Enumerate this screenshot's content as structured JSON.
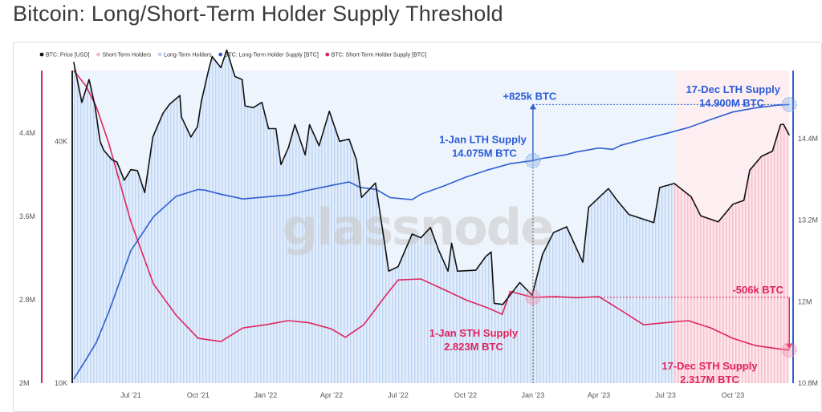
{
  "title": "Bitcoin: Long/Short-Term Holder Supply Threshold",
  "watermark": "glassnode",
  "colors": {
    "price": "#111111",
    "sth_fill": "#f7b9c7",
    "lth_fill": "#b9d3f3",
    "lth_line": "#2f5fd0",
    "sth_line": "#e0245e",
    "left_axis": "#e0245e",
    "right_axis": "#2f5fd0"
  },
  "legend": [
    {
      "label": "BTC: Price [USD]",
      "color": "#111111"
    },
    {
      "label": "Short-Term Holders",
      "color": "#f7b9c7"
    },
    {
      "label": "Long-Term Holders",
      "color": "#b9d3f3"
    },
    {
      "label": "BTC: Long-Term Holder Supply [BTC]",
      "color": "#2f5fd0"
    },
    {
      "label": "BTC: Short-Term Holder Supply [BTC]",
      "color": "#e0245e"
    }
  ],
  "annotations": {
    "lth_change": "+825k BTC",
    "lth_start_line1": "1-Jan LTH Supply",
    "lth_start_line2": "14.075M BTC",
    "lth_end_line1": "17-Dec LTH Supply",
    "lth_end_line2": "14.900M BTC",
    "sth_change": "-506k BTC",
    "sth_start_line1": "1-Jan STH Supply",
    "sth_start_line2": "2.823M BTC",
    "sth_end_line1": "17-Dec STH Supply",
    "sth_end_line2": "2.317M BTC"
  },
  "chart_data": {
    "type": "line",
    "x_axis": {
      "type": "date",
      "range": [
        "2021-04-12",
        "2023-12-20"
      ],
      "tick_labels": [
        "Jul '21",
        "Oct '21",
        "Jan '22",
        "Apr '22",
        "Jul '22",
        "Oct '22",
        "Jan '23",
        "Apr '23",
        "Jul '23",
        "Oct '23"
      ],
      "tick_dates": [
        "2021-07-01",
        "2021-10-01",
        "2022-01-01",
        "2022-04-01",
        "2022-07-01",
        "2022-10-01",
        "2023-01-01",
        "2023-04-01",
        "2023-07-01",
        "2023-10-01"
      ]
    },
    "axes": {
      "sth_supply": {
        "side": "far-left",
        "scale": "linear",
        "range": [
          2000000,
          5000000
        ],
        "tick_values": [
          2000000,
          2800000,
          3600000,
          4400000
        ],
        "tick_labels": [
          "2M",
          "2.8M",
          "3.6M",
          "4.4M"
        ]
      },
      "price": {
        "side": "left",
        "scale": "log",
        "range": [
          10000,
          60000
        ],
        "tick_values": [
          10000,
          40000
        ],
        "tick_labels": [
          "10K",
          "40K"
        ]
      },
      "lth_supply": {
        "side": "right",
        "scale": "linear",
        "range": [
          10800000,
          15400000
        ],
        "tick_values": [
          10800000,
          12000000,
          13200000,
          14400000
        ],
        "tick_labels": [
          "10.8M",
          "12M",
          "13.2M",
          "14.4M"
        ]
      }
    },
    "regions": [
      {
        "name": "Long-Term Holders",
        "from": "2021-04-12",
        "to": "2023-07-15"
      },
      {
        "name": "Short-Term Holders",
        "from": "2023-07-15",
        "to": "2023-12-17"
      }
    ],
    "series": [
      {
        "name": "BTC: Price [USD]",
        "axis": "price",
        "points": [
          [
            "2021-04-14",
            63000
          ],
          [
            "2021-04-25",
            50000
          ],
          [
            "2021-05-05",
            57000
          ],
          [
            "2021-05-13",
            49000
          ],
          [
            "2021-05-20",
            40000
          ],
          [
            "2021-05-25",
            38000
          ],
          [
            "2021-06-05",
            36000
          ],
          [
            "2021-06-12",
            35500
          ],
          [
            "2021-06-22",
            32000
          ],
          [
            "2021-07-01",
            34000
          ],
          [
            "2021-07-10",
            33800
          ],
          [
            "2021-07-20",
            29800
          ],
          [
            "2021-07-31",
            41000
          ],
          [
            "2021-08-14",
            47000
          ],
          [
            "2021-08-23",
            49500
          ],
          [
            "2021-09-06",
            52000
          ],
          [
            "2021-09-08",
            46000
          ],
          [
            "2021-09-21",
            41000
          ],
          [
            "2021-09-30",
            43500
          ],
          [
            "2021-10-05",
            50000
          ],
          [
            "2021-10-15",
            60000
          ],
          [
            "2021-10-20",
            65000
          ],
          [
            "2021-11-01",
            61000
          ],
          [
            "2021-11-09",
            67500
          ],
          [
            "2021-11-20",
            58000
          ],
          [
            "2021-11-30",
            57000
          ],
          [
            "2021-12-04",
            49000
          ],
          [
            "2021-12-15",
            48500
          ],
          [
            "2021-12-27",
            50000
          ],
          [
            "2022-01-05",
            43000
          ],
          [
            "2022-01-15",
            43000
          ],
          [
            "2022-01-22",
            35000
          ],
          [
            "2022-02-01",
            38500
          ],
          [
            "2022-02-10",
            44000
          ],
          [
            "2022-02-24",
            37000
          ],
          [
            "2022-03-02",
            44000
          ],
          [
            "2022-03-15",
            39000
          ],
          [
            "2022-03-29",
            47500
          ],
          [
            "2022-04-12",
            40000
          ],
          [
            "2022-04-25",
            40500
          ],
          [
            "2022-05-05",
            36000
          ],
          [
            "2022-05-12",
            29000
          ],
          [
            "2022-05-31",
            31500
          ],
          [
            "2022-06-13",
            22000
          ],
          [
            "2022-06-18",
            19000
          ],
          [
            "2022-07-01",
            19500
          ],
          [
            "2022-07-20",
            23500
          ],
          [
            "2022-08-01",
            23000
          ],
          [
            "2022-08-14",
            24400
          ],
          [
            "2022-08-25",
            21500
          ],
          [
            "2022-09-07",
            19000
          ],
          [
            "2022-09-12",
            22300
          ],
          [
            "2022-09-20",
            19000
          ],
          [
            "2022-10-15",
            19100
          ],
          [
            "2022-10-29",
            20700
          ],
          [
            "2022-11-05",
            21200
          ],
          [
            "2022-11-09",
            15800
          ],
          [
            "2022-11-21",
            15700
          ],
          [
            "2022-12-14",
            17800
          ],
          [
            "2022-12-31",
            16550
          ],
          [
            "2023-01-14",
            20900
          ],
          [
            "2023-01-29",
            23700
          ],
          [
            "2023-02-16",
            24500
          ],
          [
            "2023-03-10",
            20000
          ],
          [
            "2023-03-18",
            27400
          ],
          [
            "2023-04-14",
            30500
          ],
          [
            "2023-04-26",
            28500
          ],
          [
            "2023-05-12",
            26300
          ],
          [
            "2023-06-15",
            25100
          ],
          [
            "2023-06-23",
            30700
          ],
          [
            "2023-07-13",
            31400
          ],
          [
            "2023-08-05",
            29100
          ],
          [
            "2023-08-18",
            26100
          ],
          [
            "2023-09-11",
            25200
          ],
          [
            "2023-10-01",
            27900
          ],
          [
            "2023-10-16",
            28500
          ],
          [
            "2023-10-24",
            33900
          ],
          [
            "2023-11-09",
            36700
          ],
          [
            "2023-11-24",
            37800
          ],
          [
            "2023-12-05",
            44000
          ],
          [
            "2023-12-09",
            44100
          ],
          [
            "2023-12-17",
            41400
          ]
        ]
      },
      {
        "name": "BTC: Long-Term Holder Supply [BTC]",
        "axis": "lth_supply",
        "points": [
          [
            "2021-04-14",
            10860000
          ],
          [
            "2021-05-01",
            11150000
          ],
          [
            "2021-05-15",
            11400000
          ],
          [
            "2021-06-01",
            11850000
          ],
          [
            "2021-07-01",
            12750000
          ],
          [
            "2021-08-01",
            13250000
          ],
          [
            "2021-09-01",
            13550000
          ],
          [
            "2021-10-01",
            13650000
          ],
          [
            "2021-10-10",
            13640000
          ],
          [
            "2021-11-01",
            13580000
          ],
          [
            "2021-12-01",
            13510000
          ],
          [
            "2022-01-01",
            13540000
          ],
          [
            "2022-02-01",
            13570000
          ],
          [
            "2022-03-01",
            13640000
          ],
          [
            "2022-04-01",
            13710000
          ],
          [
            "2022-04-25",
            13760000
          ],
          [
            "2022-05-10",
            13680000
          ],
          [
            "2022-06-01",
            13650000
          ],
          [
            "2022-06-20",
            13530000
          ],
          [
            "2022-07-20",
            13500000
          ],
          [
            "2022-08-01",
            13580000
          ],
          [
            "2022-09-01",
            13700000
          ],
          [
            "2022-10-01",
            13830000
          ],
          [
            "2022-11-01",
            13940000
          ],
          [
            "2022-12-01",
            14030000
          ],
          [
            "2023-01-01",
            14075000
          ],
          [
            "2023-01-15",
            14110000
          ],
          [
            "2023-02-15",
            14160000
          ],
          [
            "2023-03-01",
            14200000
          ],
          [
            "2023-04-01",
            14260000
          ],
          [
            "2023-04-20",
            14240000
          ],
          [
            "2023-05-01",
            14300000
          ],
          [
            "2023-06-01",
            14390000
          ],
          [
            "2023-07-01",
            14470000
          ],
          [
            "2023-08-01",
            14560000
          ],
          [
            "2023-09-01",
            14680000
          ],
          [
            "2023-10-01",
            14790000
          ],
          [
            "2023-11-01",
            14850000
          ],
          [
            "2023-12-01",
            14890000
          ],
          [
            "2023-12-17",
            14900000
          ]
        ]
      },
      {
        "name": "BTC: Short-Term Holder Supply [BTC]",
        "axis": "sth_supply",
        "points": [
          [
            "2021-04-14",
            5000000
          ],
          [
            "2021-05-01",
            4850000
          ],
          [
            "2021-05-15",
            4650000
          ],
          [
            "2021-06-01",
            4300000
          ],
          [
            "2021-07-01",
            3550000
          ],
          [
            "2021-08-01",
            2950000
          ],
          [
            "2021-09-01",
            2650000
          ],
          [
            "2021-10-01",
            2430000
          ],
          [
            "2021-11-01",
            2400000
          ],
          [
            "2021-12-01",
            2530000
          ],
          [
            "2022-01-01",
            2560000
          ],
          [
            "2022-02-01",
            2600000
          ],
          [
            "2022-03-01",
            2580000
          ],
          [
            "2022-04-01",
            2520000
          ],
          [
            "2022-04-20",
            2440000
          ],
          [
            "2022-05-15",
            2560000
          ],
          [
            "2022-06-15",
            2850000
          ],
          [
            "2022-07-01",
            2990000
          ],
          [
            "2022-08-01",
            3000000
          ],
          [
            "2022-09-01",
            2900000
          ],
          [
            "2022-10-01",
            2800000
          ],
          [
            "2022-11-01",
            2720000
          ],
          [
            "2022-11-20",
            2660000
          ],
          [
            "2022-12-01",
            2880000
          ],
          [
            "2023-01-01",
            2823000
          ],
          [
            "2023-02-01",
            2830000
          ],
          [
            "2023-03-01",
            2820000
          ],
          [
            "2023-04-01",
            2830000
          ],
          [
            "2023-05-01",
            2700000
          ],
          [
            "2023-06-01",
            2560000
          ],
          [
            "2023-07-01",
            2580000
          ],
          [
            "2023-08-01",
            2600000
          ],
          [
            "2023-09-01",
            2530000
          ],
          [
            "2023-10-01",
            2430000
          ],
          [
            "2023-11-01",
            2360000
          ],
          [
            "2023-12-01",
            2330000
          ],
          [
            "2023-12-17",
            2317000
          ]
        ]
      }
    ]
  }
}
